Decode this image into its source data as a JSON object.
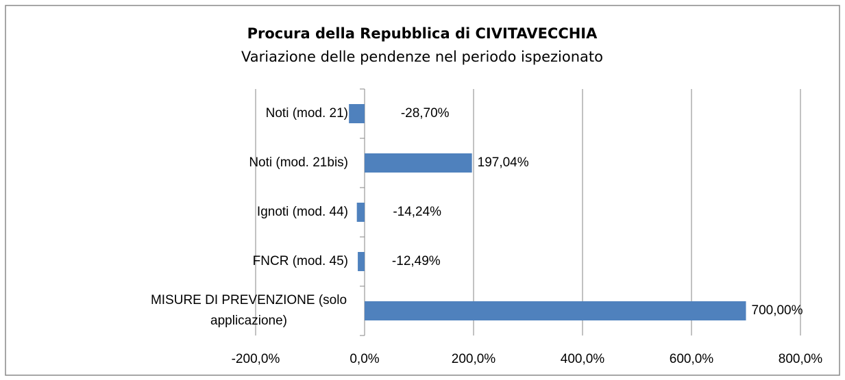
{
  "chart_data": {
    "type": "barh",
    "title": "Procura della Repubblica di CIVITAVECCHIA",
    "subtitle": "Variazione delle pendenze nel periodo ispezionato",
    "categories": [
      "Noti (mod. 21)",
      "Noti (mod. 21bis)",
      "Ignoti (mod. 44)",
      "FNCR (mod. 45)",
      "MISURE DI PREVENZIONE (solo applicazione)"
    ],
    "values": [
      -28.7,
      197.04,
      -14.24,
      -12.49,
      700.0
    ],
    "value_labels": [
      "-28,70%",
      "197,04%",
      "-14,24%",
      "-12,49%",
      "700,00%"
    ],
    "color": "#4f81bd",
    "xlim": [
      -200,
      800
    ],
    "xticks": [
      {
        "value": -200,
        "label": "-200,0%"
      },
      {
        "value": 0,
        "label": "0,0%"
      },
      {
        "value": 200,
        "label": "200,0%"
      },
      {
        "value": 400,
        "label": "400,0%"
      },
      {
        "value": 600,
        "label": "600,0%"
      },
      {
        "value": 800,
        "label": "800,0%"
      }
    ],
    "grid": true
  }
}
